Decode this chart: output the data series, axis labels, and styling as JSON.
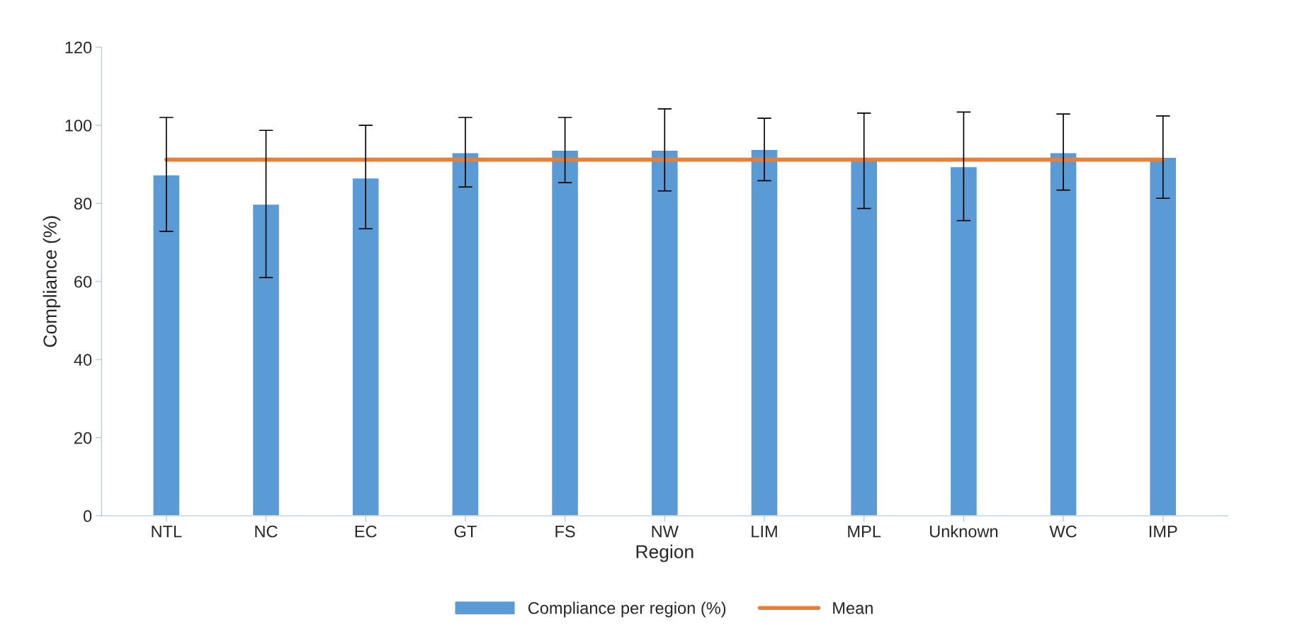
{
  "chart_data": {
    "type": "bar",
    "xlabel": "Region",
    "ylabel": "Compliance (%)",
    "categories": [
      "NTL",
      "NC",
      "EC",
      "GT",
      "FS",
      "NW",
      "LIM",
      "MPL",
      "Unknown",
      "WC",
      "IMP"
    ],
    "series": [
      {
        "name": "Compliance per region (%)",
        "color": "#5b9bd5",
        "values": [
          87.3,
          79.8,
          86.5,
          93.0,
          93.6,
          93.6,
          93.8,
          91.2,
          89.4,
          93.0,
          91.8
        ],
        "errors": [
          [
            72.8,
            102.0
          ],
          [
            61.0,
            98.7
          ],
          [
            73.5,
            100.0
          ],
          [
            84.2,
            102.0
          ],
          [
            85.3,
            102.0
          ],
          [
            83.2,
            104.2
          ],
          [
            85.8,
            101.8
          ],
          [
            78.7,
            103.1
          ],
          [
            75.6,
            103.4
          ],
          [
            83.4,
            102.9
          ],
          [
            81.3,
            102.4
          ]
        ]
      },
      {
        "name": "Mean",
        "type": "line",
        "color": "#ed7d31",
        "values": [
          91.2,
          91.2,
          91.2,
          91.2,
          91.2,
          91.2,
          91.2,
          91.2,
          91.2,
          91.2,
          91.2
        ]
      }
    ],
    "ylim": [
      0,
      120
    ],
    "yticks": [
      0,
      20,
      40,
      60,
      80,
      100,
      120
    ],
    "grid": false,
    "legend": "bottom"
  }
}
